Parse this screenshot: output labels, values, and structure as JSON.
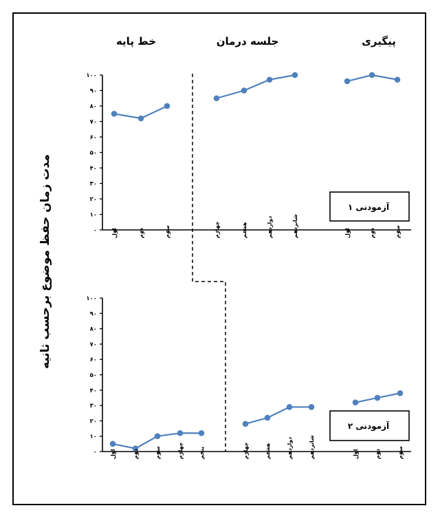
{
  "figure": {
    "ylabel": "مدت زمان حفظ موضوع برحسب ثانیه",
    "phases": [
      "خط پایه",
      "جلسه درمان",
      "پیگیری"
    ]
  },
  "chart_data": [
    {
      "type": "line",
      "participant": "آزمودنی ۱",
      "ylim": [
        0,
        100
      ],
      "yticks": [
        "۰",
        "۱۰",
        "۲۰",
        "۳۰",
        "۴۰",
        "۵۰",
        "۶۰",
        "۷۰",
        "۸۰",
        "۹۰",
        "۱۰۰"
      ],
      "grid": false,
      "phases": [
        {
          "name": "خط پایه",
          "categories": [
            "اول",
            "دوم",
            "سوم"
          ],
          "values": [
            75,
            72,
            80
          ]
        },
        {
          "name": "جلسه درمان",
          "categories": [
            "چهارم",
            "هشتم",
            "دوازدهم",
            "شانزدهم"
          ],
          "values": [
            85,
            90,
            97,
            100
          ]
        },
        {
          "name": "پیگیری",
          "categories": [
            "اول",
            "دوم",
            "سوم"
          ],
          "values": [
            96,
            100,
            97
          ]
        }
      ]
    },
    {
      "type": "line",
      "participant": "آزمودنی ۲",
      "ylim": [
        0,
        100
      ],
      "yticks": [
        "۰",
        "۱۰",
        "۲۰",
        "۳۰",
        "۴۰",
        "۵۰",
        "۶۰",
        "۷۰",
        "۸۰",
        "۹۰",
        "۱۰۰"
      ],
      "grid": false,
      "phases": [
        {
          "name": "خط پایه",
          "categories": [
            "اول",
            "دوم",
            "سوم",
            "چهارم",
            "پنجم"
          ],
          "values": [
            5,
            2,
            10,
            12,
            12
          ]
        },
        {
          "name": "جلسه درمان",
          "categories": [
            "چهارم",
            "هشتم",
            "دوازدهم",
            "شانزدهم"
          ],
          "values": [
            18,
            22,
            29,
            29
          ]
        },
        {
          "name": "پیگیری",
          "categories": [
            "اول",
            "دوم",
            "سوم"
          ],
          "values": [
            32,
            35,
            38
          ]
        }
      ]
    }
  ],
  "colors": {
    "series": "#4f81bd",
    "axis": "#000000"
  }
}
